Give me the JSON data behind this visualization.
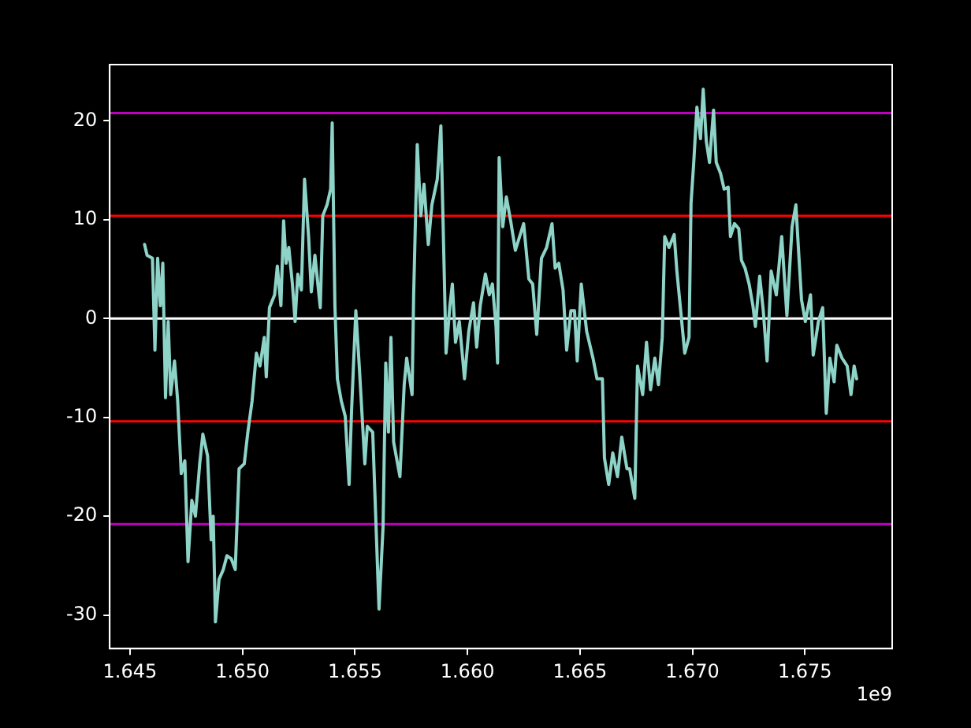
{
  "chart_data": {
    "type": "line",
    "annotations": [
      "1e9"
    ],
    "xlim": [
      1.6441,
      1.67888
    ],
    "xticks": [
      1.645,
      {
        "value": 1.65,
        "label": "1.650"
      },
      1.655,
      {
        "value": 1.66,
        "label": "1.660"
      },
      1.665,
      {
        "value": 1.67,
        "label": "1.670"
      },
      1.675
    ],
    "ylim": [
      -33.4,
      25.7
    ],
    "yticks": [
      -30,
      -20,
      -10,
      0,
      10,
      20
    ],
    "grid": false,
    "legend": false,
    "marker": "none",
    "line_style": "solid",
    "ref_lines": [
      {
        "axis": "y",
        "value": 20.8,
        "color": "#bf00bf"
      },
      {
        "axis": "y",
        "value": 10.4,
        "color": "#ff0000"
      },
      {
        "axis": "y",
        "value": 0,
        "color": "#ffffff"
      },
      {
        "axis": "y",
        "value": -10.4,
        "color": "#ff0000"
      },
      {
        "axis": "y",
        "value": -20.8,
        "color": "#bf00bf"
      }
    ],
    "series": [
      {
        "color": "#8dd3c7",
        "x": [
          1.64565,
          1.64576,
          1.646,
          1.64611,
          1.64623,
          1.64635,
          1.64646,
          1.64658,
          1.6467,
          1.64681,
          1.64698,
          1.64712,
          1.64728,
          1.64744,
          1.64758,
          1.64775,
          1.64791,
          1.6481,
          1.64824,
          1.64845,
          1.64861,
          1.6487,
          1.6488,
          1.64896,
          1.64915,
          1.64931,
          1.6495,
          1.64968,
          1.64985,
          1.65008,
          1.65024,
          1.65043,
          1.65062,
          1.65078,
          1.65097,
          1.65106,
          1.6512,
          1.65143,
          1.65155,
          1.65171,
          1.65183,
          1.65194,
          1.65206,
          1.65222,
          1.65234,
          1.65246,
          1.65262,
          1.65276,
          1.65294,
          1.65306,
          1.65322,
          1.65346,
          1.65357,
          1.65376,
          1.65392,
          1.65399,
          1.65411,
          1.65422,
          1.65439,
          1.65457,
          1.65474,
          1.65485,
          1.65504,
          1.6552,
          1.65544,
          1.65555,
          1.65579,
          1.65607,
          1.65625,
          1.65637,
          1.65649,
          1.6566,
          1.65672,
          1.657,
          1.65719,
          1.6573,
          1.65754,
          1.65761,
          1.65777,
          1.65793,
          1.65807,
          1.65826,
          1.65842,
          1.65866,
          1.65882,
          1.65905,
          1.65922,
          1.65933,
          1.65947,
          1.65964,
          1.65987,
          1.66006,
          1.66027,
          1.66041,
          1.66057,
          1.6608,
          1.66097,
          1.66111,
          1.66127,
          1.66134,
          1.66141,
          1.66157,
          1.66173,
          1.66192,
          1.66213,
          1.66232,
          1.6625,
          1.66273,
          1.6629,
          1.66308,
          1.66329,
          1.66352,
          1.66376,
          1.6639,
          1.66406,
          1.66425,
          1.66441,
          1.6646,
          1.66476,
          1.66488,
          1.66506,
          1.6653,
          1.66558,
          1.66576,
          1.666,
          1.66609,
          1.66628,
          1.66646,
          1.66667,
          1.66686,
          1.66709,
          1.66721,
          1.66744,
          1.66756,
          1.66779,
          1.66796,
          1.66814,
          1.66833,
          1.66849,
          1.66866,
          1.66877,
          1.66896,
          1.66919,
          1.66931,
          1.6695,
          1.66966,
          1.66985,
          1.66994,
          1.67006,
          1.6702,
          1.67036,
          1.67048,
          1.67062,
          1.67076,
          1.67094,
          1.67106,
          1.67125,
          1.67141,
          1.67159,
          1.67169,
          1.67187,
          1.67206,
          1.67218,
          1.67234,
          1.67252,
          1.67269,
          1.6728,
          1.67299,
          1.67315,
          1.67332,
          1.6735,
          1.67373,
          1.67397,
          1.6742,
          1.67443,
          1.6746,
          1.67471,
          1.67485,
          1.67502,
          1.67525,
          1.67537,
          1.6756,
          1.67579,
          1.67595,
          1.67611,
          1.6763,
          1.67642,
          1.67665,
          1.67688,
          1.67705,
          1.67719,
          1.6773
        ],
        "values": [
          7.5,
          6.4,
          6.1,
          -3.2,
          6.1,
          1.3,
          5.6,
          -8.0,
          -0.3,
          -7.7,
          -4.3,
          -8.3,
          -15.7,
          -14.4,
          -24.6,
          -18.4,
          -20.0,
          -14.7,
          -11.7,
          -13.9,
          -22.4,
          -20.0,
          -30.7,
          -26.4,
          -25.4,
          -24.0,
          -24.3,
          -25.4,
          -15.2,
          -14.7,
          -11.5,
          -8.3,
          -3.5,
          -4.8,
          -1.9,
          -5.9,
          1.1,
          2.4,
          5.3,
          1.3,
          9.9,
          5.6,
          7.2,
          3.5,
          -0.3,
          4.5,
          2.9,
          14.1,
          8.3,
          2.7,
          6.4,
          1.1,
          10.4,
          11.5,
          13.1,
          19.8,
          1.3,
          -6.1,
          -8.3,
          -9.9,
          -16.8,
          -9.3,
          0.8,
          -5.1,
          -14.7,
          -10.9,
          -11.5,
          -29.4,
          -21.1,
          -4.5,
          -11.5,
          -1.9,
          -12.5,
          -16.0,
          -6.7,
          -4.0,
          -7.7,
          2.4,
          17.6,
          10.4,
          13.6,
          7.5,
          11.5,
          14.1,
          19.5,
          -3.5,
          1.3,
          3.5,
          -2.4,
          -0.3,
          -6.1,
          -1.3,
          1.6,
          -2.9,
          1.3,
          4.5,
          2.4,
          3.5,
          -0.8,
          -4.5,
          16.3,
          9.3,
          12.3,
          9.9,
          6.9,
          8.3,
          9.6,
          4.0,
          3.5,
          -1.6,
          6.1,
          7.2,
          9.6,
          5.1,
          5.6,
          2.9,
          -3.2,
          0.8,
          0.8,
          -4.3,
          3.5,
          -1.3,
          -4.0,
          -6.1,
          -6.1,
          -14.1,
          -16.8,
          -13.6,
          -16.0,
          -12.0,
          -15.2,
          -15.2,
          -18.2,
          -4.8,
          -7.7,
          -2.4,
          -7.2,
          -4.0,
          -6.7,
          -1.9,
          8.3,
          7.2,
          8.5,
          4.8,
          0.3,
          -3.5,
          -1.9,
          11.7,
          15.8,
          21.4,
          18.2,
          23.2,
          17.9,
          15.8,
          21.1,
          15.8,
          14.7,
          13.1,
          13.3,
          8.3,
          9.6,
          9.1,
          5.9,
          5.1,
          3.5,
          1.3,
          -0.8,
          4.3,
          0.8,
          -4.3,
          4.8,
          2.4,
          8.3,
          0.3,
          9.3,
          11.5,
          7.2,
          1.9,
          -0.3,
          2.4,
          -3.7,
          -0.3,
          1.1,
          -9.6,
          -4.0,
          -6.4,
          -2.7,
          -4.0,
          -4.8,
          -7.7,
          -4.8,
          -6.1
        ]
      }
    ]
  }
}
